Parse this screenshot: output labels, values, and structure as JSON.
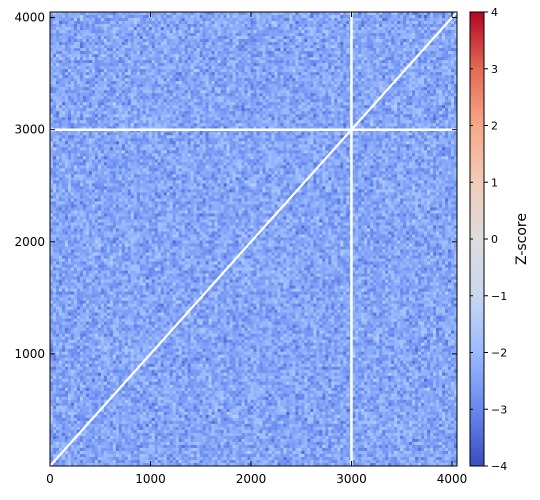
{
  "chart_data": {
    "type": "heatmap",
    "title": "",
    "xlabel": "",
    "ylabel": "",
    "x_range": [
      0,
      4050
    ],
    "y_range": [
      0,
      4050
    ],
    "x_ticks": [
      0,
      1000,
      2000,
      3000,
      4000
    ],
    "y_ticks": [
      1000,
      2000,
      3000,
      4000
    ],
    "x_tick_labels": [
      "0",
      "1000",
      "2000",
      "3000",
      "4000"
    ],
    "y_tick_labels": [
      "1000",
      "2000",
      "3000",
      "4000"
    ],
    "masked_row": 3000,
    "masked_column": 3000,
    "masked_diagonal": true,
    "colorbar": {
      "label": "Z-score",
      "range": [
        -4,
        4
      ],
      "ticks": [
        -4,
        -3,
        -2,
        -1,
        0,
        1,
        2,
        3,
        4
      ],
      "tick_labels": [
        "−4",
        "−3",
        "−2",
        "−1",
        "0",
        "1",
        "2",
        "3",
        "4"
      ],
      "colormap": [
        "#3b4cc0",
        "#6788ee",
        "#9abbff",
        "#c9d7f0",
        "#dddddd",
        "#f2cbb7",
        "#f7a889",
        "#e36a53",
        "#b40426"
      ]
    },
    "values_summary": {
      "typical_z_min": -3.6,
      "typical_z_max": -1.2,
      "dominant_color": "#6f8fe6"
    }
  }
}
